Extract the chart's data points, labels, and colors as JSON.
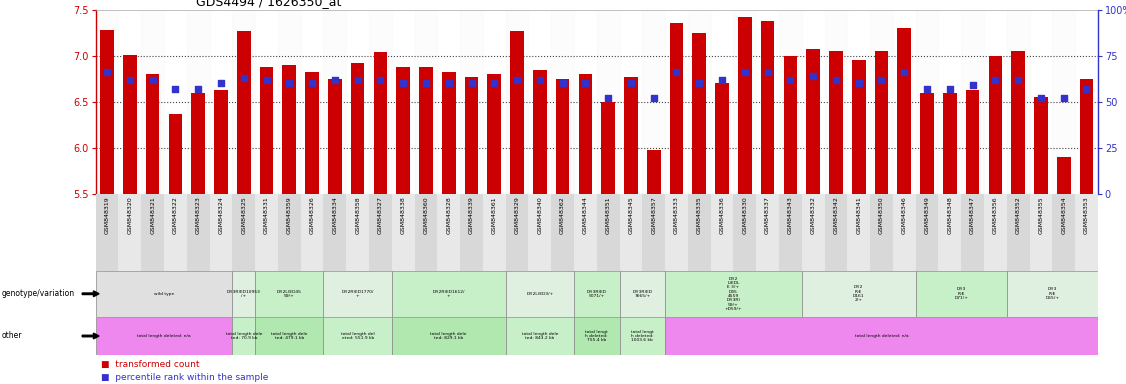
{
  "title": "GDS4494 / 1626350_at",
  "samples": [
    "GSM848319",
    "GSM848320",
    "GSM848321",
    "GSM848322",
    "GSM848323",
    "GSM848324",
    "GSM848325",
    "GSM848331",
    "GSM848359",
    "GSM848326",
    "GSM848334",
    "GSM848358",
    "GSM848327",
    "GSM848338",
    "GSM848360",
    "GSM848328",
    "GSM848339",
    "GSM848361",
    "GSM848329",
    "GSM848340",
    "GSM848362",
    "GSM848344",
    "GSM848351",
    "GSM848345",
    "GSM848357",
    "GSM848333",
    "GSM848335",
    "GSM848336",
    "GSM848330",
    "GSM848337",
    "GSM848343",
    "GSM848332",
    "GSM848342",
    "GSM848341",
    "GSM848350",
    "GSM848346",
    "GSM848349",
    "GSM848348",
    "GSM848347",
    "GSM848356",
    "GSM848352",
    "GSM848355",
    "GSM848354",
    "GSM848353"
  ],
  "bar_values": [
    7.28,
    7.01,
    6.8,
    6.37,
    6.6,
    6.63,
    7.27,
    6.88,
    6.9,
    6.82,
    6.75,
    6.92,
    7.04,
    6.88,
    6.88,
    6.82,
    6.77,
    6.8,
    7.27,
    6.85,
    6.75,
    6.8,
    6.5,
    6.77,
    5.98,
    7.35,
    7.25,
    6.7,
    7.42,
    7.38,
    7.0,
    7.07,
    7.05,
    6.95,
    7.05,
    7.3,
    6.6,
    6.6,
    6.63,
    7.0,
    7.05,
    6.55,
    5.9,
    6.75
  ],
  "dot_percentiles": [
    66,
    62,
    62,
    57,
    57,
    60,
    63,
    62,
    60,
    60,
    62,
    62,
    62,
    60,
    60,
    60,
    60,
    60,
    62,
    62,
    60,
    60,
    52,
    60,
    52,
    66,
    60,
    62,
    66,
    66,
    62,
    64,
    62,
    60,
    62,
    66,
    57,
    57,
    59,
    62,
    62,
    52,
    52,
    57
  ],
  "ylim_left": [
    5.5,
    7.5
  ],
  "ylim_right": [
    0,
    100
  ],
  "yticks_left": [
    5.5,
    6.0,
    6.5,
    7.0,
    7.5
  ],
  "yticks_right": [
    0,
    25,
    50,
    75,
    100
  ],
  "bar_color": "#cc0000",
  "dot_color": "#3333cc",
  "bg_color": "#ffffff",
  "genotype_groups": [
    {
      "label": "wild type",
      "start": 0,
      "end": 5,
      "color": "#e0e0e0"
    },
    {
      "label": "Df(3R)ED10953\n/+",
      "start": 6,
      "end": 6,
      "color": "#e0f0e0"
    },
    {
      "label": "Df(2L)ED45\n59/+",
      "start": 7,
      "end": 9,
      "color": "#c8f0c8"
    },
    {
      "label": "Df(2R)ED1770/\n+",
      "start": 10,
      "end": 12,
      "color": "#e0f0e0"
    },
    {
      "label": "Df(2R)ED1612/\n+",
      "start": 13,
      "end": 17,
      "color": "#c8f0c8"
    },
    {
      "label": "Df(2L)ED3/+",
      "start": 18,
      "end": 20,
      "color": "#e0f0e0"
    },
    {
      "label": "Df(3R)ED\n5071/+",
      "start": 21,
      "end": 22,
      "color": "#c8f0c8"
    },
    {
      "label": "Df(3R)ED\n7665/+",
      "start": 23,
      "end": 24,
      "color": "#e0f0e0"
    },
    {
      "label": "Df(2\nL)EDL\nE 3/+\nD45\n4559\nDf(3R)\n59/+\n+D59/+",
      "start": 25,
      "end": 30,
      "color": "#c8f0c8"
    },
    {
      "label": "Df(2\nR)E\nD161\n2/+",
      "start": 31,
      "end": 35,
      "color": "#e0f0e0"
    },
    {
      "label": "Df(3\nR)E\nD71/+",
      "start": 36,
      "end": 39,
      "color": "#c8f0c8"
    },
    {
      "label": "Df(3\nR)E\nD65/+",
      "start": 40,
      "end": 43,
      "color": "#e0f0e0"
    }
  ],
  "other_groups": [
    {
      "label": "total length deleted: n/a",
      "start": 0,
      "end": 5,
      "color": "#ee88ee"
    },
    {
      "label": "total length dele\nted: 70.9 kb",
      "start": 6,
      "end": 6,
      "color": "#c8f0c8"
    },
    {
      "label": "total length dele\nted: 479.1 kb",
      "start": 7,
      "end": 9,
      "color": "#b0e8b0"
    },
    {
      "label": "total length del\neted: 551.9 kb",
      "start": 10,
      "end": 12,
      "color": "#c8f0c8"
    },
    {
      "label": "total length dele\nted: 829.1 kb",
      "start": 13,
      "end": 17,
      "color": "#b0e8b0"
    },
    {
      "label": "total length dele\nted: 843.2 kb",
      "start": 18,
      "end": 20,
      "color": "#c8f0c8"
    },
    {
      "label": "total lengt\nh deleted:\n755.4 kb",
      "start": 21,
      "end": 22,
      "color": "#b0e8b0"
    },
    {
      "label": "total lengt\nh deleted:\n1003.6 kb",
      "start": 23,
      "end": 24,
      "color": "#c8f0c8"
    },
    {
      "label": "total length deleted: n/a",
      "start": 25,
      "end": 43,
      "color": "#ee88ee"
    }
  ]
}
